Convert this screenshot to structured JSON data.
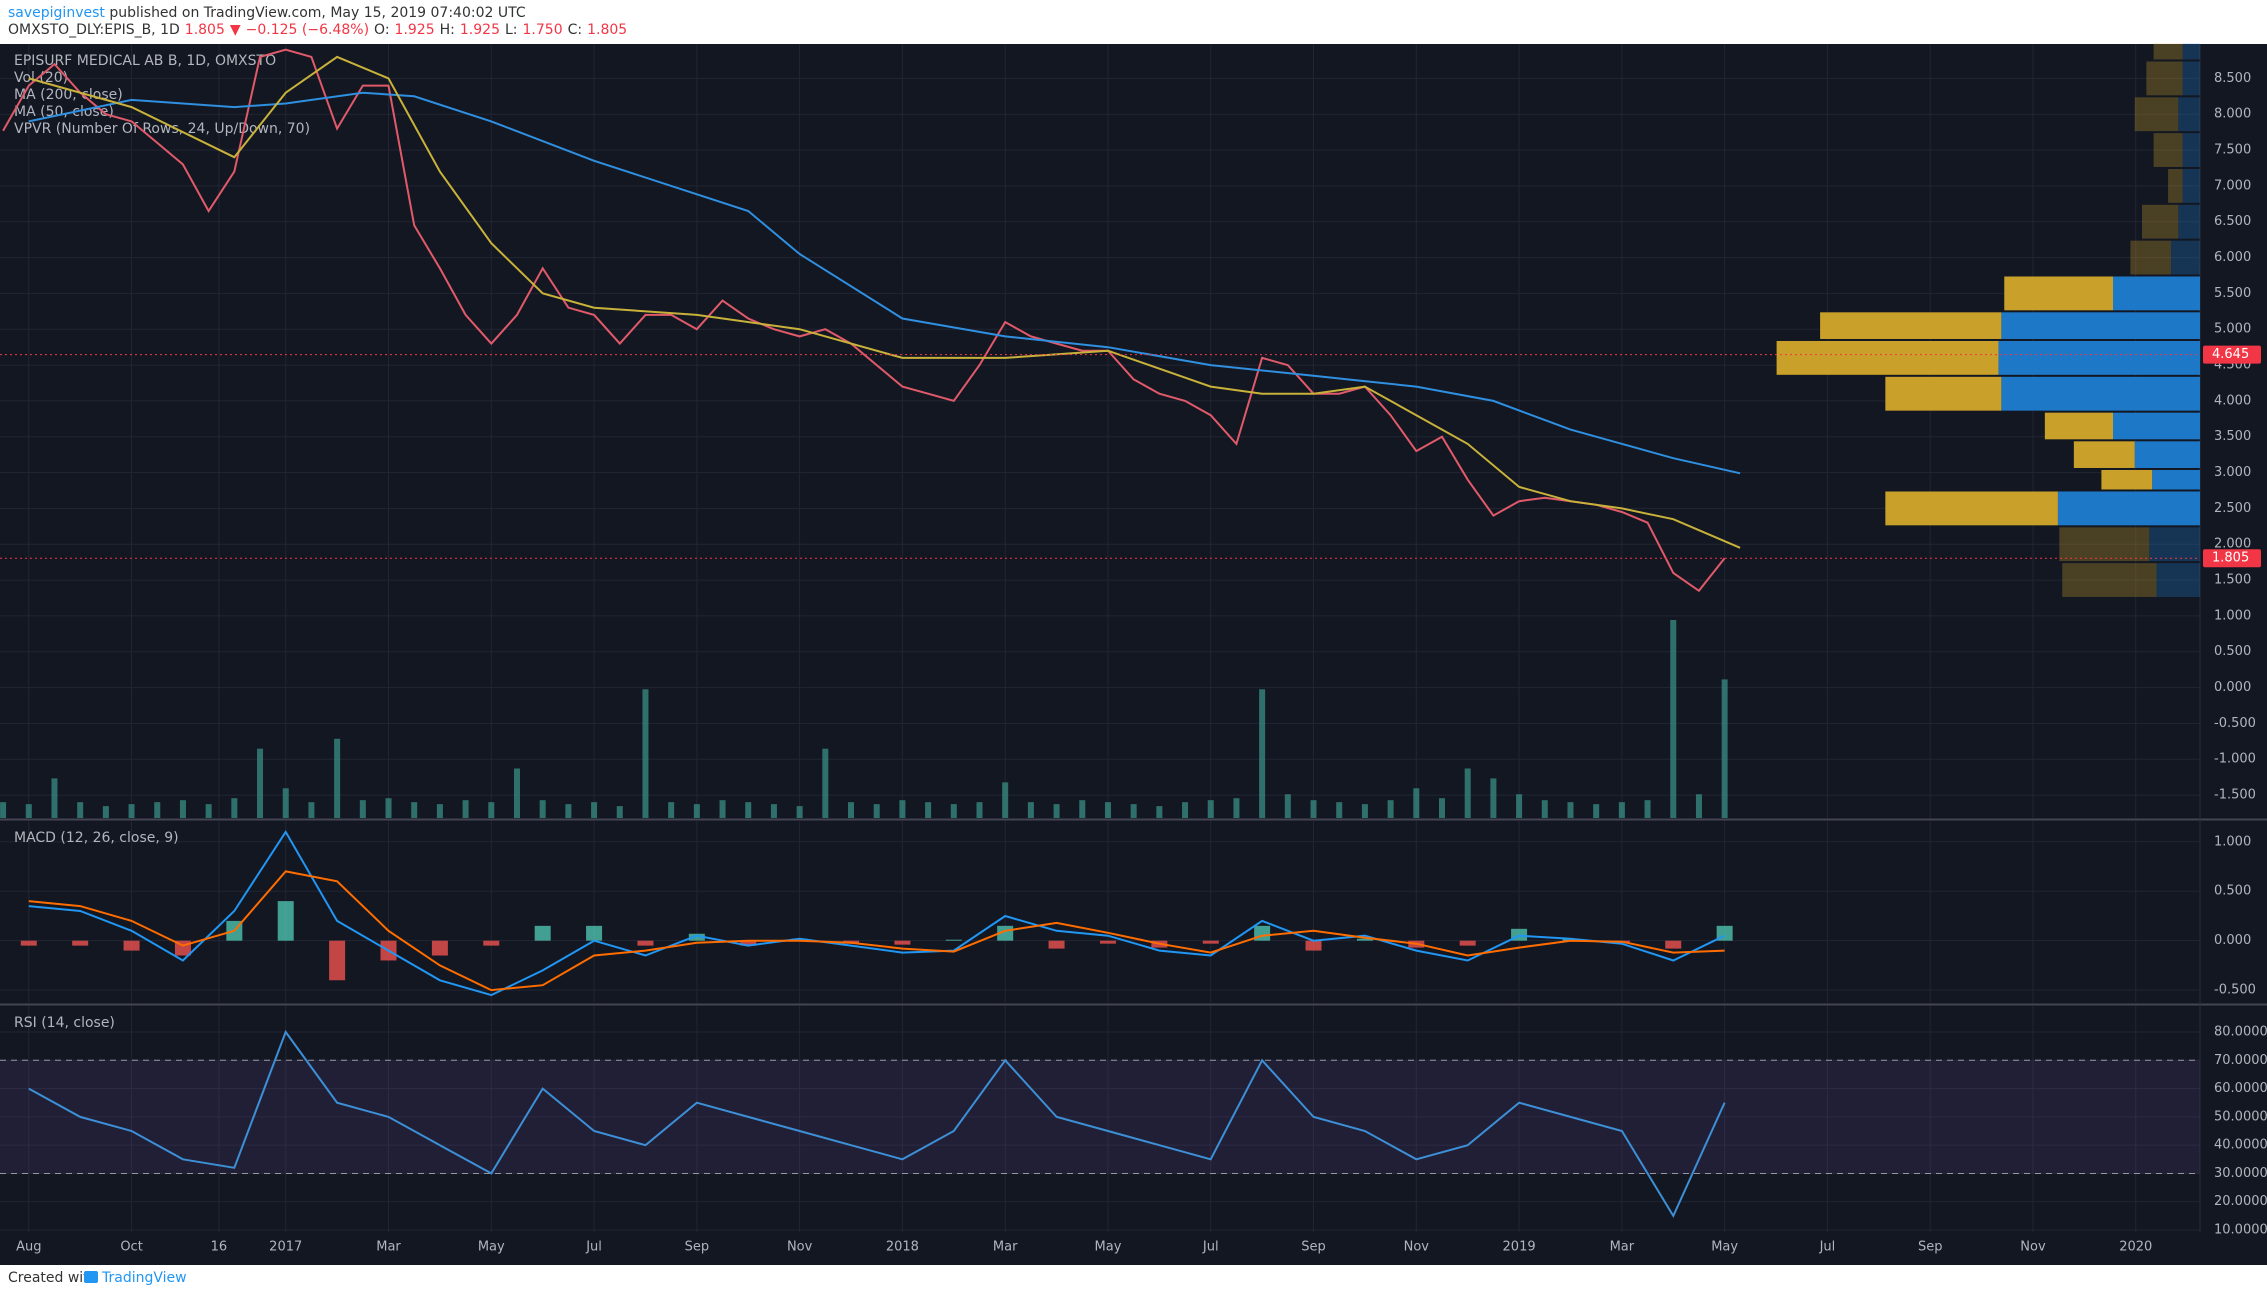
{
  "header": {
    "publisher": "savepiginvest",
    "published": "published on TradingView.com, May 15, 2019 07:40:02 UTC",
    "symbol_line": [
      "OMXSTO_DLY:EPIS_B, 1D",
      "1.805",
      "▼",
      "−0.125 (−6.48%)",
      "O:",
      "1.925",
      "H:",
      "1.925",
      "L:",
      "1.750",
      "C:",
      "1.805"
    ]
  },
  "footer": {
    "created": "Created with",
    "brand": "TradingView"
  },
  "chart_data": [
    {
      "type": "line",
      "legend": [
        "EPISURF MEDICAL AB B, 1D, OMXSTO",
        "Vol (20)",
        "MA (200, close)",
        "MA (50, close)",
        "VPVR (Number Of Rows, 24, Up/Down, 70)"
      ],
      "xlim": [
        -0.56,
        42.25
      ],
      "ylim": [
        -1.82,
        8.98
      ],
      "yticks": [
        {
          "value": 8.5,
          "label": "8.500"
        },
        {
          "value": 8,
          "label": "8.000"
        },
        {
          "value": 7.5,
          "label": "7.500"
        },
        {
          "value": 7,
          "label": "7.000"
        },
        {
          "value": 6.5,
          "label": "6.500"
        },
        {
          "value": 6,
          "label": "6.000"
        },
        {
          "value": 5.5,
          "label": "5.500"
        },
        {
          "value": 5,
          "label": "5.000"
        },
        {
          "value": 4.5,
          "label": "4.500"
        },
        {
          "value": 4,
          "label": "4.000"
        },
        {
          "value": 3.5,
          "label": "3.500"
        },
        {
          "value": 3,
          "label": "3.000"
        },
        {
          "value": 2.5,
          "label": "2.500"
        },
        {
          "value": 2,
          "label": "2.000"
        },
        {
          "value": 1.5,
          "label": "1.500"
        },
        {
          "value": 1,
          "label": "1.000"
        },
        {
          "value": 0.5,
          "label": "0.500"
        },
        {
          "value": 0,
          "label": "0.000"
        },
        {
          "value": -0.5,
          "label": "-0.500"
        },
        {
          "value": -1,
          "label": "-1.000"
        },
        {
          "value": -1.5,
          "label": "-1.500"
        }
      ],
      "series": [
        {
          "color": "#e05a6a",
          "x": [
            -0.5,
            0,
            0.5,
            1,
            1.5,
            2,
            2.5,
            3,
            3.5,
            4,
            4.5,
            5,
            5.5,
            6,
            6.5,
            7,
            7.5,
            8,
            8.5,
            9,
            9.5,
            10,
            10.5,
            11,
            11.5,
            12,
            12.5,
            13,
            13.5,
            14,
            14.5,
            15,
            15.5,
            16,
            16.5,
            17,
            17.5,
            18,
            18.5,
            19,
            19.5,
            20,
            20.5,
            21,
            21.5,
            22,
            22.5,
            23,
            23.5,
            24,
            24.5,
            25,
            25.5,
            26,
            26.5,
            27,
            27.5,
            28,
            28.5,
            29,
            29.5,
            30,
            30.5,
            31,
            31.5,
            32,
            32.5,
            33
          ],
          "values": [
            7.77,
            8.4,
            8.7,
            8.3,
            8.0,
            7.9,
            7.6,
            7.3,
            6.65,
            7.2,
            8.8,
            8.9,
            8.8,
            7.8,
            8.4,
            8.4,
            6.45,
            5.85,
            5.2,
            4.8,
            5.2,
            5.85,
            5.3,
            5.2,
            4.8,
            5.2,
            5.2,
            5.0,
            5.4,
            5.15,
            5.0,
            4.9,
            5.0,
            4.8,
            4.5,
            4.2,
            4.1,
            4.0,
            4.5,
            5.1,
            4.9,
            4.8,
            4.7,
            4.7,
            4.3,
            4.1,
            4.0,
            3.8,
            3.4,
            4.6,
            4.5,
            4.1,
            4.1,
            4.2,
            3.8,
            3.3,
            3.5,
            2.9,
            2.4,
            2.6,
            2.65,
            2.6,
            2.55,
            2.45,
            2.3,
            1.6,
            1.35,
            1.805
          ]
        },
        {
          "color": "#2f8fe0",
          "x": [
            0,
            2,
            4,
            5,
            6.5,
            7.5,
            9,
            11,
            14,
            15,
            17,
            19,
            21,
            23,
            25,
            27,
            28.5,
            30,
            32,
            33.3
          ],
          "values": [
            7.9,
            8.2,
            8.1,
            8.15,
            8.3,
            8.25,
            7.9,
            7.35,
            6.65,
            6.05,
            5.15,
            4.9,
            4.75,
            4.5,
            4.35,
            4.2,
            4.0,
            3.6,
            3.2,
            2.99
          ]
        },
        {
          "color": "#c8b23a",
          "x": [
            0,
            2,
            4,
            5,
            6,
            7,
            8,
            9,
            10,
            11,
            13,
            15,
            17,
            19,
            21,
            23,
            24,
            25,
            26,
            27,
            28,
            29,
            30,
            31,
            32,
            33.3
          ],
          "values": [
            8.5,
            8.1,
            7.4,
            8.3,
            8.8,
            8.5,
            7.2,
            6.2,
            5.5,
            5.3,
            5.2,
            5.0,
            4.6,
            4.6,
            4.7,
            4.2,
            4.1,
            4.1,
            4.2,
            3.8,
            3.4,
            2.8,
            2.6,
            2.5,
            2.35,
            1.95
          ]
        }
      ],
      "price_lines": [
        {
          "value": 4.645,
          "color": "#f23645"
        },
        {
          "value": 1.805,
          "color": "#f23645"
        }
      ],
      "vpvr": {
        "xlim": [
          0,
          300
        ],
        "up_color": "#1e78c8",
        "down_color": "#c9a02a",
        "value_area": [
          2.25,
          5.75
        ],
        "row_low": [
          1.25,
          1.75,
          2.25,
          2.75,
          3.05,
          3.45,
          3.85,
          4.35,
          4.85,
          5.25,
          5.75,
          6.25,
          6.75,
          7.25,
          7.75,
          8.25,
          8.75
        ],
        "row_high": [
          1.75,
          2.25,
          2.75,
          3.05,
          3.45,
          3.85,
          4.35,
          4.85,
          5.25,
          5.75,
          6.25,
          6.75,
          7.25,
          7.75,
          8.25,
          8.75,
          9.0
        ],
        "up": [
          30,
          35,
          98,
          33,
          45,
          60,
          137,
          139,
          137,
          60,
          20,
          15,
          12,
          12,
          15,
          12,
          12
        ],
        "down": [
          65,
          62,
          119,
          35,
          42,
          47,
          80,
          153,
          125,
          75,
          28,
          25,
          10,
          20,
          30,
          25,
          20
        ]
      }
    },
    {
      "type": "bar",
      "color": "#3a8f86",
      "xlim": [
        -0.56,
        42.25
      ],
      "ylim": [
        0,
        100
      ],
      "x": [
        -0.5,
        0,
        0.5,
        1,
        1.5,
        2,
        2.5,
        3,
        3.5,
        4,
        4.5,
        5,
        5.5,
        6,
        6.5,
        7,
        7.5,
        8,
        8.5,
        9,
        9.5,
        10,
        10.5,
        11,
        11.5,
        12,
        12.5,
        13,
        13.5,
        14,
        14.5,
        15,
        15.5,
        16,
        16.5,
        17,
        17.5,
        18,
        18.5,
        19,
        19.5,
        20,
        20.5,
        21,
        21.5,
        22,
        22.5,
        23,
        23.5,
        24,
        24.5,
        25,
        25.5,
        26,
        26.5,
        27,
        27.5,
        28,
        28.5,
        29,
        29.5,
        30,
        30.5,
        31,
        31.5,
        32,
        32.5,
        33
      ],
      "values": [
        8,
        7,
        20,
        8,
        6,
        7,
        8,
        9,
        7,
        10,
        35,
        15,
        8,
        40,
        9,
        10,
        8,
        7,
        9,
        8,
        25,
        9,
        7,
        8,
        6,
        65,
        8,
        7,
        9,
        8,
        7,
        6,
        35,
        8,
        7,
        9,
        8,
        7,
        8,
        18,
        8,
        7,
        9,
        8,
        7,
        6,
        8,
        9,
        10,
        65,
        12,
        9,
        8,
        7,
        9,
        15,
        10,
        25,
        20,
        12,
        9,
        8,
        7,
        8,
        9,
        100,
        12,
        70
      ]
    },
    {
      "type": "line",
      "legend": [
        "MACD (12, 26, close, 9)"
      ],
      "xlim": [
        -0.56,
        42.25
      ],
      "ylim": [
        -0.63,
        1.21
      ],
      "yticks": [
        {
          "value": 1,
          "label": "1.000"
        },
        {
          "value": 0.5,
          "label": "0.500"
        },
        {
          "value": 0,
          "label": "0.000"
        },
        {
          "value": -0.5,
          "label": "-0.500"
        }
      ],
      "hist": {
        "colors": [
          "#4fc3b0",
          "#ef5350"
        ],
        "x": [
          0,
          1,
          2,
          3,
          4,
          5,
          6,
          7,
          8,
          9,
          10,
          11,
          12,
          13,
          14,
          15,
          16,
          17,
          18,
          19,
          20,
          21,
          22,
          23,
          24,
          25,
          26,
          27,
          28,
          29,
          30,
          31,
          32,
          33
        ],
        "values": [
          -0.05,
          -0.05,
          -0.1,
          -0.15,
          0.2,
          0.4,
          -0.4,
          -0.2,
          -0.15,
          -0.05,
          0.15,
          0.15,
          -0.05,
          0.07,
          -0.05,
          0.02,
          -0.03,
          -0.04,
          0.01,
          0.15,
          -0.08,
          -0.03,
          -0.07,
          -0.03,
          0.15,
          -0.1,
          0.02,
          -0.07,
          -0.05,
          0.12,
          0.02,
          -0.02,
          -0.08,
          0.15
        ]
      },
      "series": [
        {
          "color": "#2196f3",
          "x": [
            0,
            1,
            2,
            3,
            4,
            5,
            6,
            7,
            8,
            9,
            10,
            11,
            12,
            13,
            14,
            15,
            16,
            17,
            18,
            19,
            20,
            21,
            22,
            23,
            24,
            25,
            26,
            27,
            28,
            29,
            30,
            31,
            32,
            33
          ],
          "values": [
            0.35,
            0.3,
            0.1,
            -0.2,
            0.3,
            1.1,
            0.2,
            -0.1,
            -0.4,
            -0.55,
            -0.3,
            0.0,
            -0.15,
            0.05,
            -0.05,
            0.02,
            -0.05,
            -0.12,
            -0.1,
            0.25,
            0.1,
            0.05,
            -0.1,
            -0.15,
            0.2,
            0.0,
            0.05,
            -0.1,
            -0.2,
            0.05,
            0.02,
            -0.03,
            -0.2,
            0.05
          ]
        },
        {
          "color": "#ff6d00",
          "x": [
            0,
            1,
            2,
            3,
            4,
            5,
            6,
            7,
            8,
            9,
            10,
            11,
            12,
            13,
            14,
            15,
            16,
            17,
            18,
            19,
            20,
            21,
            22,
            23,
            24,
            25,
            26,
            27,
            28,
            29,
            30,
            31,
            32,
            33
          ],
          "values": [
            0.4,
            0.35,
            0.2,
            -0.05,
            0.1,
            0.7,
            0.6,
            0.1,
            -0.25,
            -0.5,
            -0.45,
            -0.15,
            -0.1,
            -0.02,
            0,
            0,
            -0.02,
            -0.08,
            -0.11,
            0.1,
            0.18,
            0.08,
            -0.03,
            -0.12,
            0.05,
            0.1,
            0.03,
            -0.03,
            -0.15,
            -0.07,
            0,
            -0.01,
            -0.12,
            -0.1
          ]
        }
      ]
    },
    {
      "type": "line",
      "legend": [
        "RSI (14, close)"
      ],
      "xlim": [
        -0.56,
        42.25
      ],
      "ylim": [
        9.3,
        89.2
      ],
      "yticks": [
        {
          "value": 80,
          "label": "80.0000"
        },
        {
          "value": 70,
          "label": "70.0000"
        },
        {
          "value": 60,
          "label": "60.0000"
        },
        {
          "value": 50,
          "label": "50.0000"
        },
        {
          "value": 40,
          "label": "40.0000"
        },
        {
          "value": 30,
          "label": "30.0000"
        },
        {
          "value": 20,
          "label": "20.0000"
        },
        {
          "value": 10,
          "label": "10.0000"
        }
      ],
      "bands": [
        30,
        70
      ],
      "band_color": "#7e57c2",
      "xticks": [
        {
          "value": 0,
          "label": "Aug"
        },
        {
          "value": 2,
          "label": "Oct"
        },
        {
          "value": 3.7,
          "label": "16"
        },
        {
          "value": 5,
          "label": "2017"
        },
        {
          "value": 7,
          "label": "Mar"
        },
        {
          "value": 9,
          "label": "May"
        },
        {
          "value": 11,
          "label": "Jul"
        },
        {
          "value": 13,
          "label": "Sep"
        },
        {
          "value": 15,
          "label": "Nov"
        },
        {
          "value": 17,
          "label": "2018"
        },
        {
          "value": 19,
          "label": "Mar"
        },
        {
          "value": 21,
          "label": "May"
        },
        {
          "value": 23,
          "label": "Jul"
        },
        {
          "value": 25,
          "label": "Sep"
        },
        {
          "value": 27,
          "label": "Nov"
        },
        {
          "value": 29,
          "label": "2019"
        },
        {
          "value": 31,
          "label": "Mar"
        },
        {
          "value": 33,
          "label": "May"
        },
        {
          "value": 35,
          "label": "Jul"
        },
        {
          "value": 37,
          "label": "Sep"
        },
        {
          "value": 39,
          "label": "Nov"
        },
        {
          "value": 41,
          "label": "2020"
        }
      ],
      "series": [
        {
          "color": "#3d8fd6",
          "x": [
            0,
            1,
            2,
            3,
            4,
            5,
            6,
            7,
            8,
            9,
            10,
            11,
            12,
            13,
            14,
            15,
            16,
            17,
            18,
            19,
            20,
            21,
            22,
            23,
            24,
            25,
            26,
            27,
            28,
            29,
            30,
            31,
            32,
            33
          ],
          "values": [
            60,
            50,
            45,
            35,
            32,
            80,
            55,
            50,
            40,
            30,
            60,
            45,
            40,
            55,
            50,
            45,
            40,
            35,
            45,
            70,
            50,
            45,
            40,
            35,
            70,
            50,
            45,
            35,
            40,
            55,
            50,
            45,
            15,
            55
          ]
        }
      ]
    }
  ]
}
